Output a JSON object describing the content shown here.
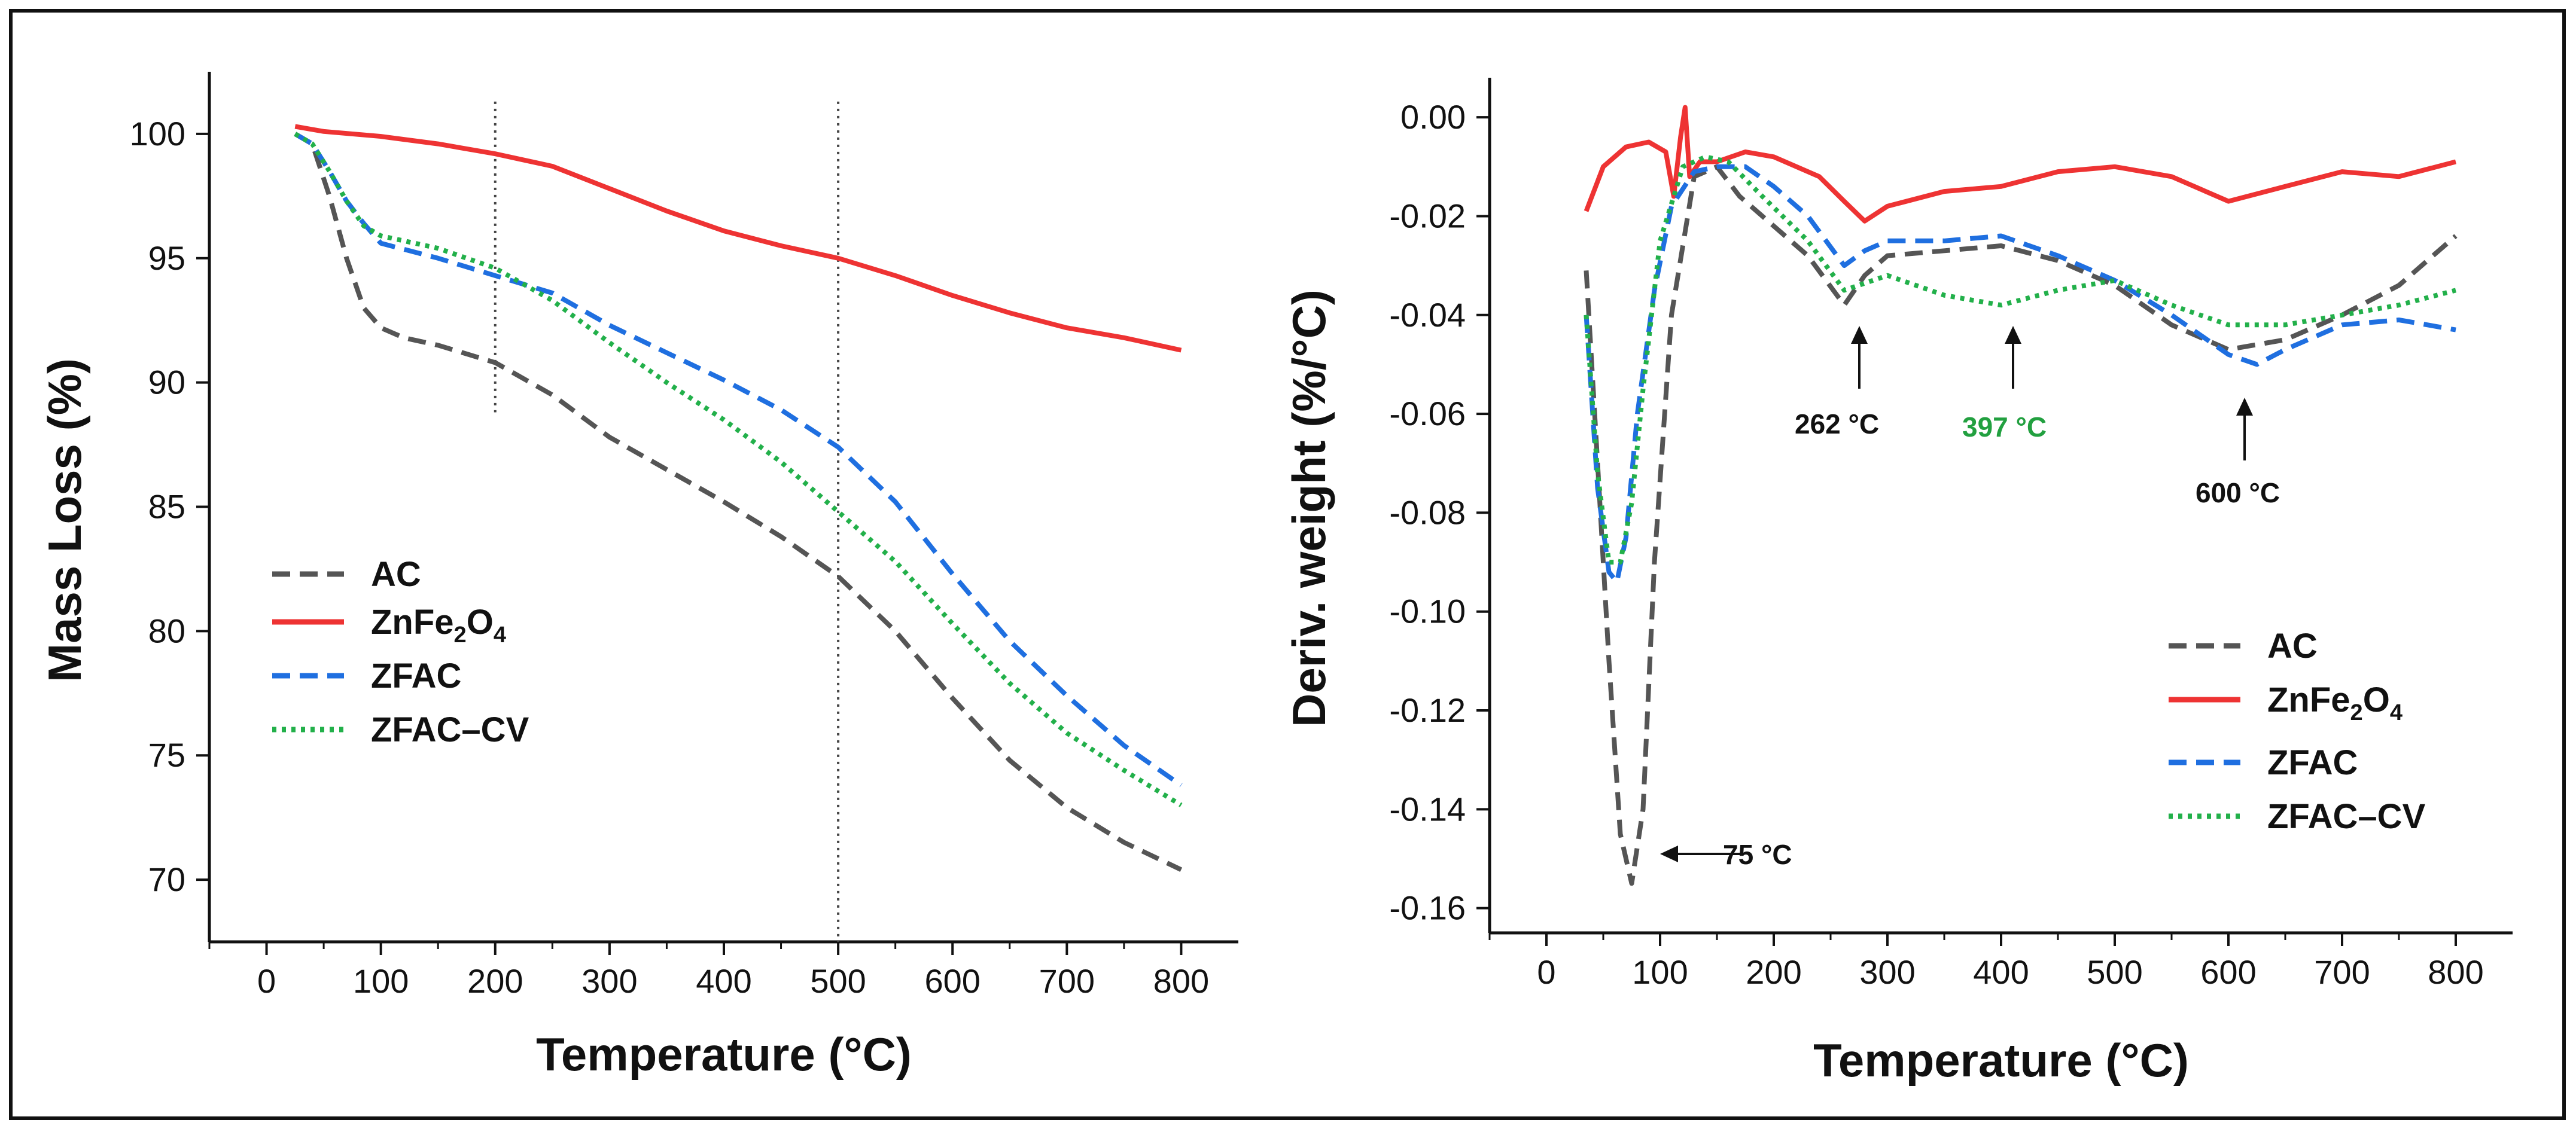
{
  "colors": {
    "AC": "#555555",
    "ZnFe2O4": "#ee3333",
    "ZFAC": "#1f6fe0",
    "ZFAC_CV": "#22b04a",
    "annotation_green": "#22a040"
  },
  "chart_data": [
    {
      "type": "line",
      "xlabel": "Temperature (°C)",
      "ylabel": "Mass Loss (%)",
      "xlim": [
        -50,
        850
      ],
      "ylim": [
        67.5,
        102.5
      ],
      "xticks": [
        0,
        100,
        200,
        300,
        400,
        500,
        600,
        700,
        800
      ],
      "yticks": [
        70,
        75,
        80,
        85,
        90,
        95,
        100
      ],
      "grid": false,
      "legend_position": "bottom-left",
      "vlines": [
        200,
        500
      ],
      "series": [
        {
          "name": "AC",
          "label": "AC",
          "style": "dash",
          "color": "#555555",
          "x": [
            25,
            40,
            55,
            70,
            85,
            100,
            120,
            150,
            200,
            250,
            300,
            400,
            450,
            500,
            550,
            600,
            650,
            700,
            750,
            800
          ],
          "y": [
            100,
            99.6,
            97.5,
            95,
            93,
            92.2,
            91.8,
            91.5,
            90.8,
            89.5,
            87.8,
            85.2,
            83.8,
            82.2,
            80,
            77.3,
            74.8,
            72.9,
            71.5,
            70.4
          ]
        },
        {
          "name": "ZnFe2O4",
          "label": "ZnFe",
          "sub1": "2",
          "label2": "O",
          "sub2": "4",
          "style": "solid",
          "color": "#ee3333",
          "x": [
            25,
            50,
            100,
            150,
            200,
            250,
            300,
            350,
            400,
            450,
            500,
            550,
            600,
            650,
            700,
            750,
            800
          ],
          "y": [
            100.3,
            100.1,
            99.9,
            99.6,
            99.2,
            98.7,
            97.8,
            96.9,
            96.1,
            95.5,
            95.0,
            94.3,
            93.5,
            92.8,
            92.2,
            91.8,
            91.3
          ]
        },
        {
          "name": "ZFAC",
          "label": "ZFAC",
          "style": "dash",
          "color": "#1f6fe0",
          "x": [
            25,
            40,
            55,
            70,
            85,
            100,
            150,
            200,
            250,
            300,
            350,
            400,
            450,
            500,
            550,
            600,
            650,
            700,
            750,
            800
          ],
          "y": [
            100,
            99.6,
            98.5,
            97.3,
            96.4,
            95.6,
            95.0,
            94.3,
            93.6,
            92.3,
            91.2,
            90.1,
            88.9,
            87.4,
            85.2,
            82.3,
            79.6,
            77.4,
            75.4,
            73.8
          ]
        },
        {
          "name": "ZFAC-CV",
          "label": "ZFAC–CV",
          "style": "dot",
          "color": "#22b04a",
          "x": [
            25,
            40,
            55,
            70,
            85,
            100,
            150,
            200,
            250,
            300,
            350,
            400,
            450,
            500,
            550,
            600,
            650,
            700,
            750,
            800
          ],
          "y": [
            100,
            99.6,
            98.5,
            97.3,
            96.3,
            95.9,
            95.4,
            94.6,
            93.3,
            91.6,
            90.0,
            88.5,
            86.8,
            84.8,
            82.8,
            80.3,
            77.9,
            75.9,
            74.4,
            73.0
          ]
        }
      ]
    },
    {
      "type": "line",
      "xlabel": "Temperature (°C)",
      "ylabel": "Deriv. weight (%/°C)",
      "xlim": [
        -50,
        850
      ],
      "ylim": [
        -0.165,
        0.008
      ],
      "xticks": [
        0,
        100,
        200,
        300,
        400,
        500,
        600,
        700,
        800
      ],
      "yticks": [
        0.0,
        -0.02,
        -0.04,
        -0.06,
        -0.08,
        -0.1,
        -0.12,
        -0.14,
        -0.16
      ],
      "ytick_labels": [
        "0.00",
        "-0.02",
        "-0.04",
        "-0.06",
        "-0.08",
        "-0.10",
        "-0.12",
        "-0.14",
        "-0.16"
      ],
      "grid": false,
      "legend_position": "bottom-right",
      "annotations": [
        {
          "text": "75 °C",
          "x": 75,
          "y": -0.155
        },
        {
          "text": "262 °C",
          "x": 262,
          "y": -0.04
        },
        {
          "text": "397 °C",
          "x": 397,
          "y": -0.04
        },
        {
          "text": "600 °C",
          "x": 600,
          "y": -0.058
        }
      ],
      "series": [
        {
          "name": "AC",
          "label": "AC",
          "style": "dash",
          "color": "#555555",
          "x": [
            35,
            45,
            55,
            65,
            75,
            85,
            95,
            110,
            130,
            150,
            170,
            200,
            230,
            262,
            280,
            300,
            350,
            400,
            450,
            500,
            550,
            600,
            650,
            700,
            750,
            800
          ],
          "y": [
            -0.031,
            -0.07,
            -0.11,
            -0.145,
            -0.155,
            -0.14,
            -0.09,
            -0.04,
            -0.012,
            -0.01,
            -0.016,
            -0.022,
            -0.028,
            -0.038,
            -0.032,
            -0.028,
            -0.027,
            -0.026,
            -0.029,
            -0.034,
            -0.042,
            -0.047,
            -0.045,
            -0.04,
            -0.034,
            -0.024
          ]
        },
        {
          "name": "ZnFe2O4",
          "label": "ZnFe",
          "sub1": "2",
          "label2": "O",
          "sub2": "4",
          "style": "solid",
          "color": "#ee3333",
          "x": [
            35,
            50,
            70,
            90,
            105,
            112,
            118,
            122,
            126,
            135,
            150,
            175,
            200,
            240,
            262,
            280,
            300,
            350,
            400,
            450,
            500,
            550,
            600,
            650,
            700,
            750,
            800
          ],
          "y": [
            -0.019,
            -0.01,
            -0.006,
            -0.005,
            -0.007,
            -0.016,
            -0.004,
            0.002,
            -0.012,
            -0.009,
            -0.009,
            -0.007,
            -0.008,
            -0.012,
            -0.017,
            -0.021,
            -0.018,
            -0.015,
            -0.014,
            -0.011,
            -0.01,
            -0.012,
            -0.017,
            -0.014,
            -0.011,
            -0.012,
            -0.009
          ]
        },
        {
          "name": "ZFAC",
          "label": "ZFAC",
          "style": "dash",
          "color": "#1f6fe0",
          "x": [
            35,
            45,
            55,
            62,
            70,
            80,
            95,
            110,
            130,
            150,
            175,
            200,
            230,
            262,
            280,
            300,
            350,
            400,
            450,
            500,
            550,
            600,
            625,
            650,
            700,
            750,
            800
          ],
          "y": [
            -0.04,
            -0.075,
            -0.092,
            -0.094,
            -0.085,
            -0.06,
            -0.035,
            -0.018,
            -0.011,
            -0.01,
            -0.01,
            -0.014,
            -0.02,
            -0.03,
            -0.027,
            -0.025,
            -0.025,
            -0.024,
            -0.028,
            -0.033,
            -0.04,
            -0.048,
            -0.05,
            -0.047,
            -0.042,
            -0.041,
            -0.043
          ]
        },
        {
          "name": "ZFAC-CV",
          "label": "ZFAC–CV",
          "style": "dot",
          "color": "#22b04a",
          "x": [
            35,
            45,
            55,
            65,
            75,
            85,
            100,
            120,
            140,
            160,
            190,
            230,
            262,
            300,
            350,
            400,
            450,
            500,
            550,
            600,
            650,
            700,
            750,
            800
          ],
          "y": [
            -0.04,
            -0.072,
            -0.09,
            -0.09,
            -0.078,
            -0.055,
            -0.025,
            -0.01,
            -0.008,
            -0.009,
            -0.016,
            -0.025,
            -0.035,
            -0.032,
            -0.036,
            -0.038,
            -0.035,
            -0.033,
            -0.038,
            -0.042,
            -0.042,
            -0.04,
            -0.038,
            -0.035
          ]
        }
      ]
    }
  ]
}
